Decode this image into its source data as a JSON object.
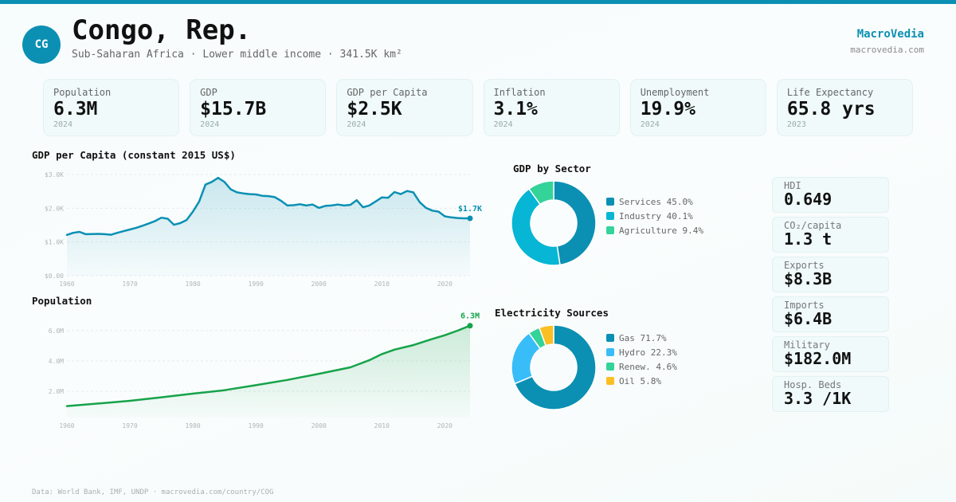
{
  "header": {
    "country_code": "CG",
    "title": "Congo, Rep.",
    "subtitle": "Sub-Saharan Africa · Lower middle income · 341.5K km²",
    "brand": "MacroVedia",
    "brand_url": "macrovedia.com"
  },
  "colors": {
    "accent": "#0b90b3",
    "gdp_line": "#0b90b3",
    "population_line": "#16a34a"
  },
  "stats": [
    {
      "label": "Population",
      "value": "6.3M",
      "year": "2024"
    },
    {
      "label": "GDP",
      "value": "$15.7B",
      "year": "2024"
    },
    {
      "label": "GDP per Capita",
      "value": "$2.5K",
      "year": "2024"
    },
    {
      "label": "Inflation",
      "value": "3.1%",
      "year": "2024"
    },
    {
      "label": "Unemployment",
      "value": "19.9%",
      "year": "2024"
    },
    {
      "label": "Life Expectancy",
      "value": "65.8 yrs",
      "year": "2023"
    }
  ],
  "side_stats": [
    {
      "label": "HDI",
      "value": "0.649"
    },
    {
      "label": "CO₂/capita",
      "value": "1.3 t"
    },
    {
      "label": "Exports",
      "value": "$8.3B"
    },
    {
      "label": "Imports",
      "value": "$6.4B"
    },
    {
      "label": "Military",
      "value": "$182.0M"
    },
    {
      "label": "Hosp. Beds",
      "value": "3.3 /1K"
    }
  ],
  "footer": "Data: World Bank, IMF, UNDP · macrovedia.com/country/COG",
  "chart_data": [
    {
      "id": "gdp_per_capita",
      "type": "area",
      "title": "GDP per Capita (constant 2015 US$)",
      "xlabel": "",
      "ylabel": "",
      "xlim": [
        1960,
        2024
      ],
      "ylim": [
        0,
        3000
      ],
      "grid": true,
      "x_ticks": [
        "1960",
        "1970",
        "1980",
        "1990",
        "2000",
        "2010",
        "2020"
      ],
      "y_ticks": [
        "$0.00",
        "$1.0K",
        "$2.0K",
        "$3.0K"
      ],
      "y_tick_values": [
        0,
        1000,
        2000,
        3000
      ],
      "end_label": "$1.7K",
      "x": [
        1960,
        1961,
        1962,
        1963,
        1964,
        1965,
        1966,
        1967,
        1968,
        1969,
        1970,
        1971,
        1972,
        1973,
        1974,
        1975,
        1976,
        1977,
        1978,
        1979,
        1980,
        1981,
        1982,
        1983,
        1984,
        1985,
        1986,
        1987,
        1988,
        1989,
        1990,
        1991,
        1992,
        1993,
        1994,
        1995,
        1996,
        1997,
        1998,
        1999,
        2000,
        2001,
        2002,
        2003,
        2004,
        2005,
        2006,
        2007,
        2008,
        2009,
        2010,
        2011,
        2012,
        2013,
        2014,
        2015,
        2016,
        2017,
        2018,
        2019,
        2020,
        2021,
        2022,
        2023,
        2024
      ],
      "values": [
        1210,
        1270,
        1300,
        1230,
        1235,
        1240,
        1230,
        1215,
        1270,
        1320,
        1370,
        1420,
        1480,
        1550,
        1620,
        1720,
        1690,
        1510,
        1560,
        1650,
        1900,
        2200,
        2700,
        2780,
        2900,
        2780,
        2560,
        2470,
        2440,
        2420,
        2410,
        2370,
        2360,
        2330,
        2220,
        2080,
        2090,
        2120,
        2080,
        2110,
        2010,
        2070,
        2080,
        2110,
        2080,
        2100,
        2240,
        2030,
        2080,
        2200,
        2320,
        2310,
        2480,
        2420,
        2510,
        2470,
        2180,
        2010,
        1930,
        1900,
        1760,
        1730,
        1710,
        1700,
        1700
      ]
    },
    {
      "id": "population",
      "type": "area",
      "title": "Population",
      "xlabel": "",
      "ylabel": "",
      "xlim": [
        1960,
        2024
      ],
      "ylim": [
        0,
        7000000
      ],
      "grid": true,
      "x_ticks": [
        "1960",
        "1970",
        "1980",
        "1990",
        "2000",
        "2010",
        "2020"
      ],
      "y_ticks": [
        "2.0M",
        "4.0M",
        "6.0M"
      ],
      "y_tick_values": [
        2000000,
        4000000,
        6000000
      ],
      "end_label": "6.3M",
      "x": [
        1960,
        1965,
        1970,
        1975,
        1980,
        1985,
        1990,
        1995,
        2000,
        2002,
        2005,
        2008,
        2010,
        2012,
        2015,
        2018,
        2020,
        2022,
        2024
      ],
      "values": [
        1020000,
        1190000,
        1370000,
        1600000,
        1840000,
        2070000,
        2400000,
        2750000,
        3150000,
        3320000,
        3580000,
        4050000,
        4450000,
        4750000,
        5050000,
        5450000,
        5700000,
        6000000,
        6330000
      ]
    },
    {
      "id": "gdp_by_sector",
      "type": "pie",
      "title": "GDP by Sector",
      "categories": [
        "Services",
        "Industry",
        "Agriculture"
      ],
      "values": [
        45.0,
        40.1,
        9.4
      ],
      "labels": [
        "Services 45.0%",
        "Industry 40.1%",
        "Agriculture 9.4%"
      ],
      "colors": [
        "#0b90b3",
        "#06b6d4",
        "#34d399"
      ],
      "legend": "right"
    },
    {
      "id": "electricity_sources",
      "type": "pie",
      "title": "Electricity Sources",
      "categories": [
        "Gas",
        "Hydro",
        "Renew.",
        "Oil"
      ],
      "values": [
        71.7,
        22.3,
        4.6,
        5.8
      ],
      "labels": [
        "Gas 71.7%",
        "Hydro 22.3%",
        "Renew. 4.6%",
        "Oil 5.8%"
      ],
      "colors": [
        "#0b90b3",
        "#38bdf8",
        "#34d399",
        "#fbbf24"
      ],
      "legend": "right"
    }
  ]
}
